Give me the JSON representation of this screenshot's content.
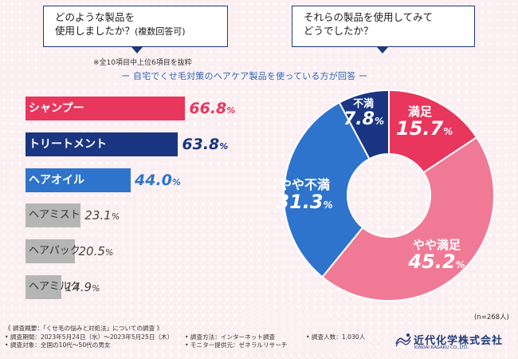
{
  "questions": {
    "q1_line1": "どのような製品を",
    "q1_line2": "使用しましたか？",
    "q1_suffix": "(複数回答可)",
    "q2_line1": "それらの製品を使用してみて",
    "q2_line2": "どうでしたか？"
  },
  "note": "※全10項目中上位6項目を抜粋",
  "subtitle": "ー 自宅でくせ毛対策のヘアケア製品を使っている方が回答 ー",
  "sample_size": "(n=268人)",
  "colors": {
    "pink": "#e8365d",
    "navy": "#1a3582",
    "blue": "#2e74cc",
    "gray": "#b5b5b5",
    "pie_light_pink": "#f07a96"
  },
  "chart_data": [
    {
      "type": "bar",
      "orientation": "horizontal",
      "categories": [
        "シャンプー",
        "トリートメント",
        "ヘアオイル",
        "ヘアミスト",
        "ヘアパック",
        "ヘアミルク"
      ],
      "values": [
        66.8,
        63.8,
        44.0,
        23.1,
        20.5,
        14.9
      ],
      "value_labels": [
        {
          "num": "66.8",
          "unit": "%"
        },
        {
          "num": "63.8",
          "unit": "%"
        },
        {
          "num": "44.0",
          "unit": "%"
        },
        {
          "num": "23.1",
          "unit": "%"
        },
        {
          "num": "20.5",
          "unit": "%"
        },
        {
          "num": "14.9",
          "unit": "%"
        }
      ],
      "xlim": [
        0,
        100
      ]
    },
    {
      "type": "pie",
      "style": "donut",
      "slices": [
        {
          "label": "満足",
          "value": 15.7,
          "num": "15.7",
          "unit": "%"
        },
        {
          "label": "やや満足",
          "value": 45.2,
          "num": "45.2",
          "unit": "%"
        },
        {
          "label": "やや不満",
          "value": 31.3,
          "num": "31.3",
          "unit": "%"
        },
        {
          "label": "不満",
          "value": 7.8,
          "num": "7.8",
          "unit": "%"
        }
      ]
    }
  ],
  "footer": {
    "overview": "《 調査概要：「くせ毛の悩みと対処法」についての調査 》",
    "period": "• 調査期間：2023年5月24日（水）～2023年5月25日（木）",
    "target": "• 調査対象：全国の10代～50代の男女",
    "method": "• 調査方法：インターネット調査",
    "provider": "• モニター提供元：ゼネラルリサーチ",
    "count": "• 調査人数：1,030人",
    "company_jp": "近代化学株式会社",
    "company_en": "KINDAI KAGAKU CO.,LTD."
  }
}
